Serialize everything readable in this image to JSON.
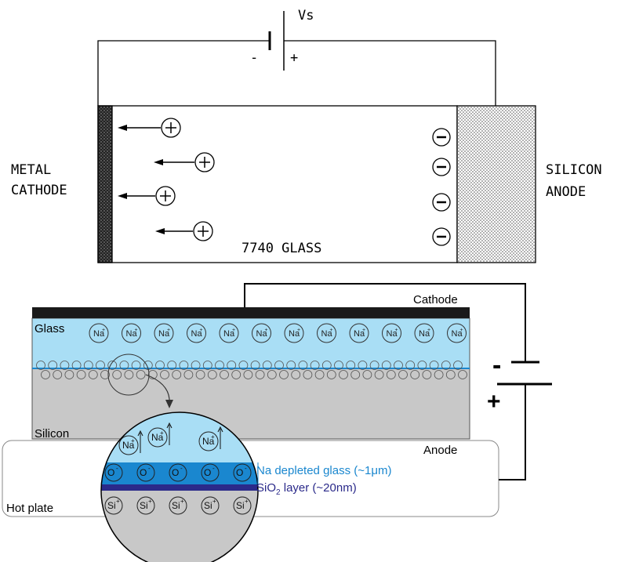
{
  "top": {
    "vs_label": "Vs",
    "minus_label": "-",
    "plus_label": "+",
    "cathode_label_line1": "METAL",
    "cathode_label_line2": "CATHODE",
    "anode_label_line1": "SILICON",
    "anode_label_line2": "ANODE",
    "glass_label": "7740 GLASS",
    "positive_ion_symbol": "+",
    "negative_ion_symbol": "-"
  },
  "bottom": {
    "cathode_label": "Cathode",
    "glass_label": "Glass",
    "silicon_label": "Silicon",
    "anode_label": "Anode",
    "hotplate_label": "Hot plate",
    "battery_minus": "-",
    "battery_plus": "+",
    "na_ion_label": "Na",
    "o2_ion_label": "O",
    "si_ion_label": "Si",
    "depleted_label": "Na depleted glass (~1μm)",
    "sio2_label_prefix": "SiO",
    "sio2_label_sub": "2",
    "sio2_label_suffix": " layer (~20nm)"
  },
  "colors": {
    "glass_fill": "#a9def5",
    "silicon_fill": "#c8c8c8",
    "cathode_bar": "#1a1a1a",
    "depleted_fill": "#1a87cf",
    "depleted_text": "#1a87cf",
    "sio2_fill": "#2b2a8a",
    "sio2_text": "#2b2a8a",
    "line": "#000000"
  }
}
